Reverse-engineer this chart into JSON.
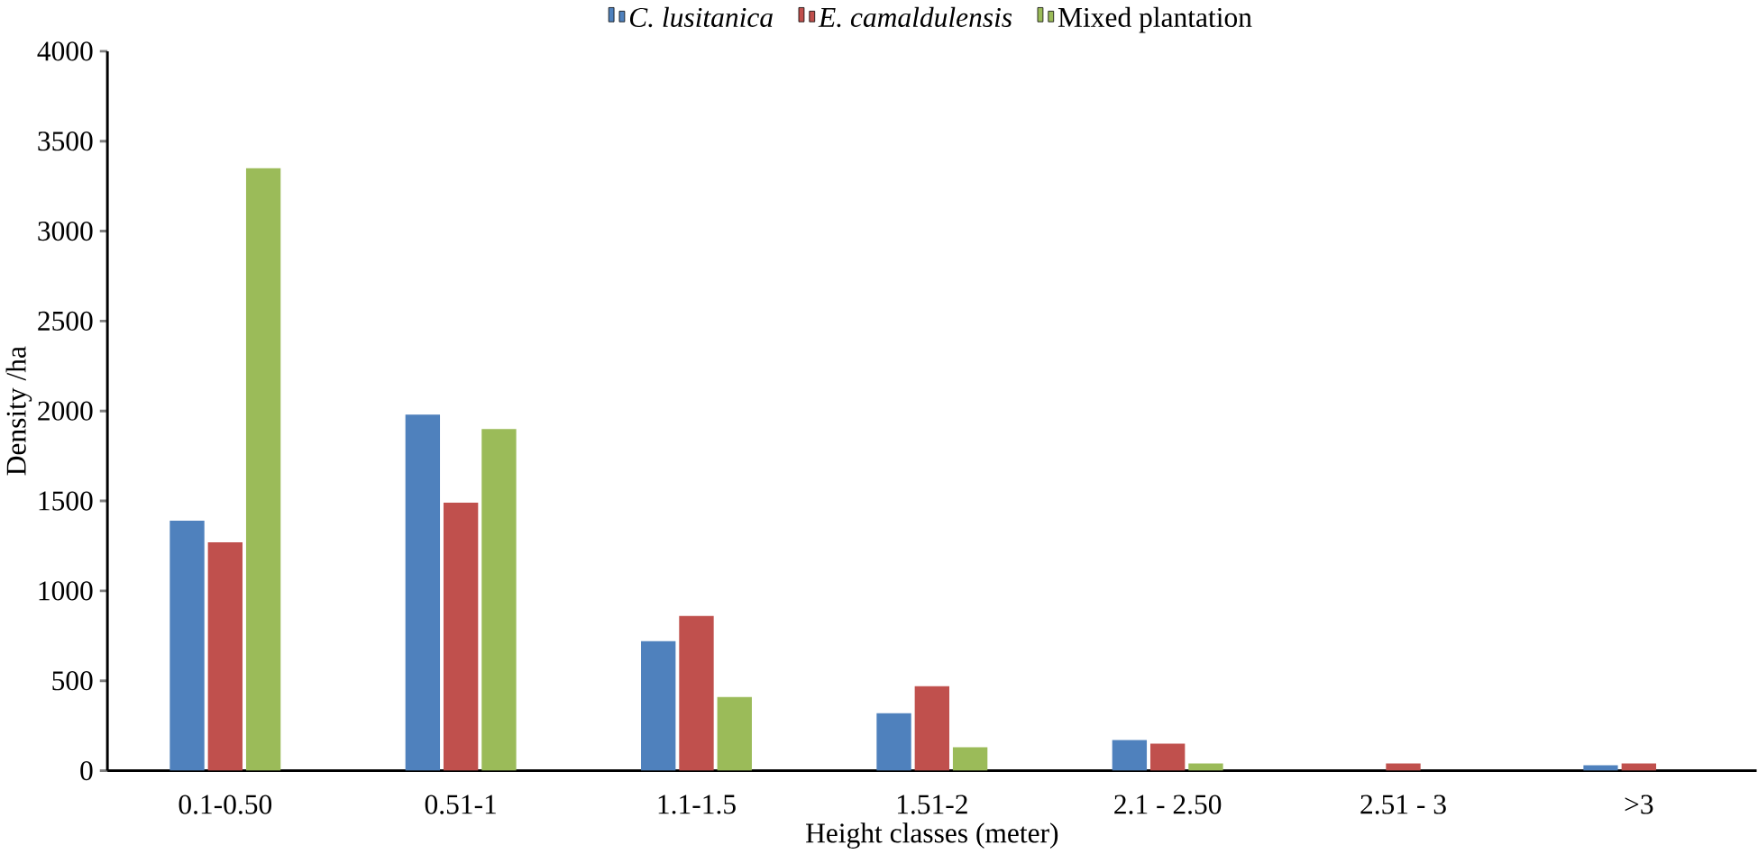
{
  "chart_data": {
    "type": "bar",
    "xlabel": "Height classes (meter)",
    "ylabel": "Density /ha",
    "categories": [
      "0.1-0.50",
      "0.51-1",
      "1.1-1.5",
      "1.51-2",
      "2.1 - 2.50",
      "2.51 - 3",
      ">3"
    ],
    "series": [
      {
        "name": "C. lusitanica",
        "color": "#4f81bd",
        "values": [
          1390,
          1980,
          720,
          320,
          170,
          0,
          30
        ]
      },
      {
        "name": "E. camaldulensis",
        "color": "#c0504d",
        "values": [
          1270,
          1490,
          860,
          470,
          150,
          40,
          40
        ]
      },
      {
        "name": "Mixed plantation",
        "color": "#9bbb59",
        "values": [
          3350,
          1900,
          410,
          130,
          40,
          0,
          0
        ]
      }
    ],
    "ylim": [
      0,
      4000
    ],
    "yticks": [
      0,
      500,
      1000,
      1500,
      2000,
      2500,
      3000,
      3500,
      4000
    ],
    "legend": "top",
    "grid": false
  }
}
